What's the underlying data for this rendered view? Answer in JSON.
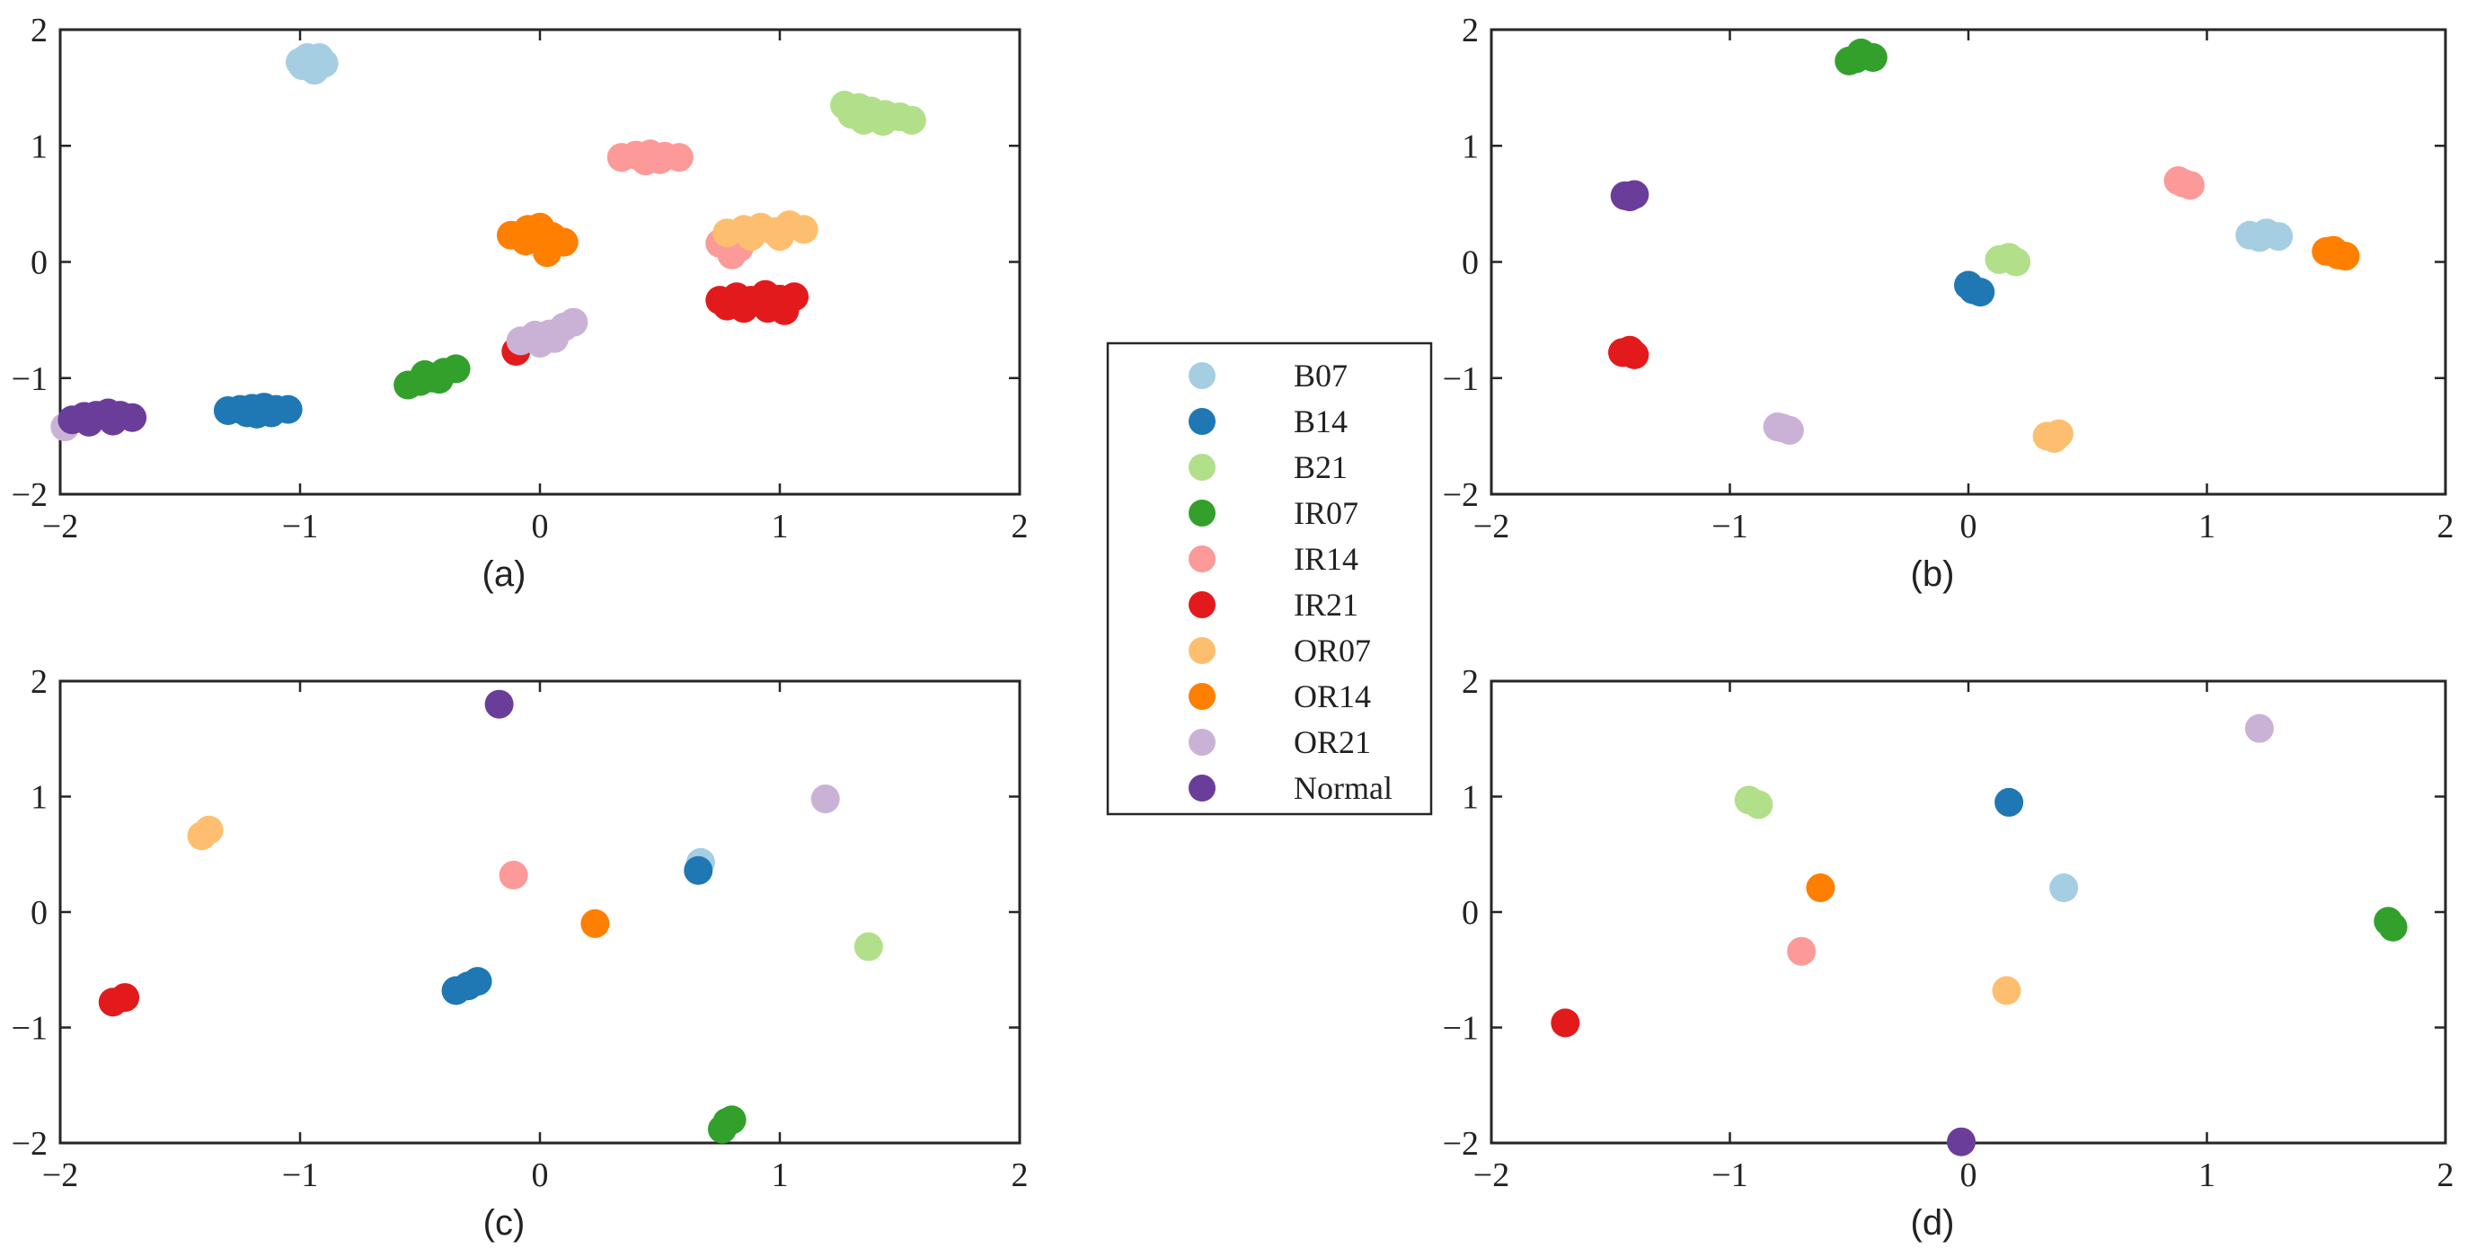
{
  "chart_data": {
    "type": "scatter",
    "legend": {
      "placement": "center",
      "entries": [
        {
          "name": "B07",
          "color": "#a6cee3"
        },
        {
          "name": "B14",
          "color": "#1f78b4"
        },
        {
          "name": "B21",
          "color": "#b2df8a"
        },
        {
          "name": "IR07",
          "color": "#33a02c"
        },
        {
          "name": "IR14",
          "color": "#fb9a99"
        },
        {
          "name": "IR21",
          "color": "#e31a1c"
        },
        {
          "name": "OR07",
          "color": "#fdbf6f"
        },
        {
          "name": "OR14",
          "color": "#ff7f00"
        },
        {
          "name": "OR21",
          "color": "#cab2d6"
        },
        {
          "name": "Normal",
          "color": "#6a3d9a"
        }
      ]
    },
    "panels": [
      {
        "label": "(a)",
        "xlim": [
          -2,
          2
        ],
        "ylim": [
          -2,
          2
        ],
        "xticks": [
          -2,
          -1,
          0,
          1,
          2
        ],
        "yticks": [
          -2,
          -1,
          0,
          1,
          2
        ],
        "grid": false,
        "clusters": [
          {
            "series": "B07",
            "points": [
              [
                -1.0,
                1.72
              ],
              [
                -0.97,
                1.76
              ],
              [
                -0.93,
                1.73
              ],
              [
                -0.9,
                1.71
              ],
              [
                -0.95,
                1.68
              ],
              [
                -0.99,
                1.69
              ],
              [
                -0.94,
                1.65
              ],
              [
                -0.92,
                1.76
              ]
            ]
          },
          {
            "series": "B14",
            "points": [
              [
                -1.3,
                -1.28
              ],
              [
                -1.25,
                -1.27
              ],
              [
                -1.2,
                -1.26
              ],
              [
                -1.15,
                -1.25
              ],
              [
                -1.1,
                -1.27
              ],
              [
                -1.05,
                -1.27
              ],
              [
                -1.18,
                -1.31
              ],
              [
                -1.12,
                -1.3
              ],
              [
                -1.22,
                -1.3
              ]
            ]
          },
          {
            "series": "B21",
            "points": [
              [
                1.27,
                1.35
              ],
              [
                1.33,
                1.33
              ],
              [
                1.38,
                1.3
              ],
              [
                1.44,
                1.27
              ],
              [
                1.5,
                1.25
              ],
              [
                1.55,
                1.22
              ],
              [
                1.35,
                1.22
              ],
              [
                1.43,
                1.21
              ],
              [
                1.3,
                1.27
              ]
            ]
          },
          {
            "series": "IR07",
            "points": [
              [
                -0.55,
                -1.06
              ],
              [
                -0.5,
                -1.03
              ],
              [
                -0.45,
                -1.0
              ],
              [
                -0.4,
                -0.95
              ],
              [
                -0.35,
                -0.92
              ],
              [
                -0.48,
                -0.97
              ],
              [
                -0.42,
                -1.01
              ]
            ]
          },
          {
            "series": "IR14",
            "points": [
              [
                0.34,
                0.9
              ],
              [
                0.4,
                0.92
              ],
              [
                0.46,
                0.93
              ],
              [
                0.52,
                0.91
              ],
              [
                0.58,
                0.9
              ],
              [
                0.44,
                0.87
              ],
              [
                0.5,
                0.88
              ],
              [
                0.78,
                0.18
              ],
              [
                0.83,
                0.12
              ],
              [
                0.8,
                0.06
              ],
              [
                0.75,
                0.16
              ]
            ]
          },
          {
            "series": "IR21",
            "points": [
              [
                -0.1,
                -0.77
              ],
              [
                0.75,
                -0.33
              ],
              [
                0.82,
                -0.3
              ],
              [
                0.88,
                -0.33
              ],
              [
                0.94,
                -0.28
              ],
              [
                1.0,
                -0.32
              ],
              [
                1.06,
                -0.3
              ],
              [
                0.85,
                -0.4
              ],
              [
                0.95,
                -0.4
              ],
              [
                1.02,
                -0.42
              ],
              [
                0.78,
                -0.38
              ]
            ]
          },
          {
            "series": "OR07",
            "points": [
              [
                0.78,
                0.25
              ],
              [
                0.85,
                0.28
              ],
              [
                0.92,
                0.3
              ],
              [
                0.98,
                0.26
              ],
              [
                1.04,
                0.32
              ],
              [
                1.1,
                0.28
              ],
              [
                0.88,
                0.22
              ],
              [
                1.0,
                0.22
              ]
            ]
          },
          {
            "series": "OR14",
            "points": [
              [
                -0.12,
                0.23
              ],
              [
                -0.05,
                0.28
              ],
              [
                0.0,
                0.3
              ],
              [
                0.05,
                0.22
              ],
              [
                0.1,
                0.17
              ],
              [
                0.03,
                0.08
              ],
              [
                -0.06,
                0.18
              ]
            ]
          },
          {
            "series": "OR21",
            "points": [
              [
                -1.98,
                -1.42
              ],
              [
                -0.08,
                -0.68
              ],
              [
                -0.02,
                -0.63
              ],
              [
                0.04,
                -0.62
              ],
              [
                0.1,
                -0.56
              ],
              [
                0.14,
                -0.52
              ],
              [
                0.0,
                -0.7
              ],
              [
                0.06,
                -0.66
              ]
            ]
          },
          {
            "series": "Normal",
            "points": [
              [
                -1.95,
                -1.36
              ],
              [
                -1.9,
                -1.33
              ],
              [
                -1.85,
                -1.32
              ],
              [
                -1.8,
                -1.3
              ],
              [
                -1.75,
                -1.32
              ],
              [
                -1.7,
                -1.34
              ],
              [
                -1.88,
                -1.38
              ],
              [
                -1.78,
                -1.37
              ]
            ]
          }
        ]
      },
      {
        "label": "(b)",
        "xlim": [
          -2,
          2
        ],
        "ylim": [
          -2,
          2
        ],
        "xticks": [
          -2,
          -1,
          0,
          1,
          2
        ],
        "yticks": [
          -2,
          -1,
          0,
          1,
          2
        ],
        "grid": false,
        "clusters": [
          {
            "series": "B07",
            "points": [
              [
                1.18,
                0.23
              ],
              [
                1.25,
                0.25
              ],
              [
                1.3,
                0.22
              ],
              [
                1.22,
                0.21
              ]
            ]
          },
          {
            "series": "B14",
            "points": [
              [
                0.0,
                -0.2
              ],
              [
                0.05,
                -0.26
              ],
              [
                0.02,
                -0.24
              ]
            ]
          },
          {
            "series": "B21",
            "points": [
              [
                0.13,
                0.02
              ],
              [
                0.2,
                0.0
              ],
              [
                0.17,
                0.04
              ]
            ]
          },
          {
            "series": "IR07",
            "points": [
              [
                -0.5,
                1.73
              ],
              [
                -0.45,
                1.8
              ],
              [
                -0.4,
                1.76
              ],
              [
                -0.47,
                1.75
              ]
            ]
          },
          {
            "series": "IR14",
            "points": [
              [
                0.88,
                0.7
              ],
              [
                0.93,
                0.66
              ],
              [
                0.9,
                0.68
              ]
            ]
          },
          {
            "series": "IR21",
            "points": [
              [
                -1.45,
                -0.78
              ],
              [
                -1.4,
                -0.8
              ],
              [
                -1.42,
                -0.76
              ]
            ]
          },
          {
            "series": "OR07",
            "points": [
              [
                0.33,
                -1.5
              ],
              [
                0.38,
                -1.48
              ],
              [
                0.36,
                -1.52
              ]
            ]
          },
          {
            "series": "OR14",
            "points": [
              [
                1.5,
                0.09
              ],
              [
                1.55,
                0.06
              ],
              [
                1.58,
                0.05
              ],
              [
                1.53,
                0.1
              ]
            ]
          },
          {
            "series": "OR21",
            "points": [
              [
                -0.8,
                -1.42
              ],
              [
                -0.75,
                -1.45
              ],
              [
                -0.78,
                -1.43
              ]
            ]
          },
          {
            "series": "Normal",
            "points": [
              [
                -1.44,
                0.57
              ],
              [
                -1.4,
                0.58
              ],
              [
                -1.42,
                0.56
              ]
            ]
          }
        ]
      },
      {
        "label": "(c)",
        "xlim": [
          -2,
          2
        ],
        "ylim": [
          -2,
          2
        ],
        "xticks": [
          -2,
          -1,
          0,
          1,
          2
        ],
        "yticks": [
          -2,
          -1,
          0,
          1,
          2
        ],
        "grid": false,
        "clusters": [
          {
            "series": "B07",
            "points": [
              [
                0.67,
                0.43
              ]
            ]
          },
          {
            "series": "B14",
            "points": [
              [
                -0.35,
                -0.68
              ],
              [
                -0.3,
                -0.64
              ],
              [
                -0.26,
                -0.6
              ],
              [
                0.66,
                0.36
              ]
            ]
          },
          {
            "series": "B21",
            "points": [
              [
                1.37,
                -0.3
              ]
            ]
          },
          {
            "series": "IR07",
            "points": [
              [
                0.78,
                -1.82
              ],
              [
                0.76,
                -1.88
              ],
              [
                0.8,
                -1.8
              ]
            ]
          },
          {
            "series": "IR14",
            "points": [
              [
                -0.11,
                0.32
              ]
            ]
          },
          {
            "series": "IR21",
            "points": [
              [
                -1.78,
                -0.78
              ],
              [
                -1.73,
                -0.74
              ]
            ]
          },
          {
            "series": "OR07",
            "points": [
              [
                -1.41,
                0.66
              ],
              [
                -1.38,
                0.71
              ]
            ]
          },
          {
            "series": "OR14",
            "points": [
              [
                0.23,
                -0.1
              ]
            ]
          },
          {
            "series": "OR21",
            "points": [
              [
                1.19,
                0.98
              ]
            ]
          },
          {
            "series": "Normal",
            "points": [
              [
                -0.17,
                1.8
              ]
            ]
          }
        ]
      },
      {
        "label": "(d)",
        "xlim": [
          -2,
          2
        ],
        "ylim": [
          -2,
          2
        ],
        "xticks": [
          -2,
          -1,
          0,
          1,
          2
        ],
        "yticks": [
          -2,
          -1,
          0,
          1,
          2
        ],
        "grid": false,
        "clusters": [
          {
            "series": "B07",
            "points": [
              [
                0.4,
                0.21
              ]
            ]
          },
          {
            "series": "B14",
            "points": [
              [
                0.17,
                0.95
              ]
            ]
          },
          {
            "series": "B21",
            "points": [
              [
                -0.92,
                0.97
              ],
              [
                -0.88,
                0.93
              ]
            ]
          },
          {
            "series": "IR07",
            "points": [
              [
                1.76,
                -0.08
              ],
              [
                1.78,
                -0.13
              ]
            ]
          },
          {
            "series": "IR14",
            "points": [
              [
                -0.7,
                -0.34
              ]
            ]
          },
          {
            "series": "IR21",
            "points": [
              [
                -1.69,
                -0.96
              ]
            ]
          },
          {
            "series": "OR07",
            "points": [
              [
                0.16,
                -0.68
              ]
            ]
          },
          {
            "series": "OR14",
            "points": [
              [
                -0.62,
                0.21
              ]
            ]
          },
          {
            "series": "OR21",
            "points": [
              [
                1.22,
                1.59
              ]
            ]
          },
          {
            "series": "Normal",
            "points": [
              [
                -0.03,
                -1.99
              ]
            ]
          }
        ]
      }
    ]
  }
}
